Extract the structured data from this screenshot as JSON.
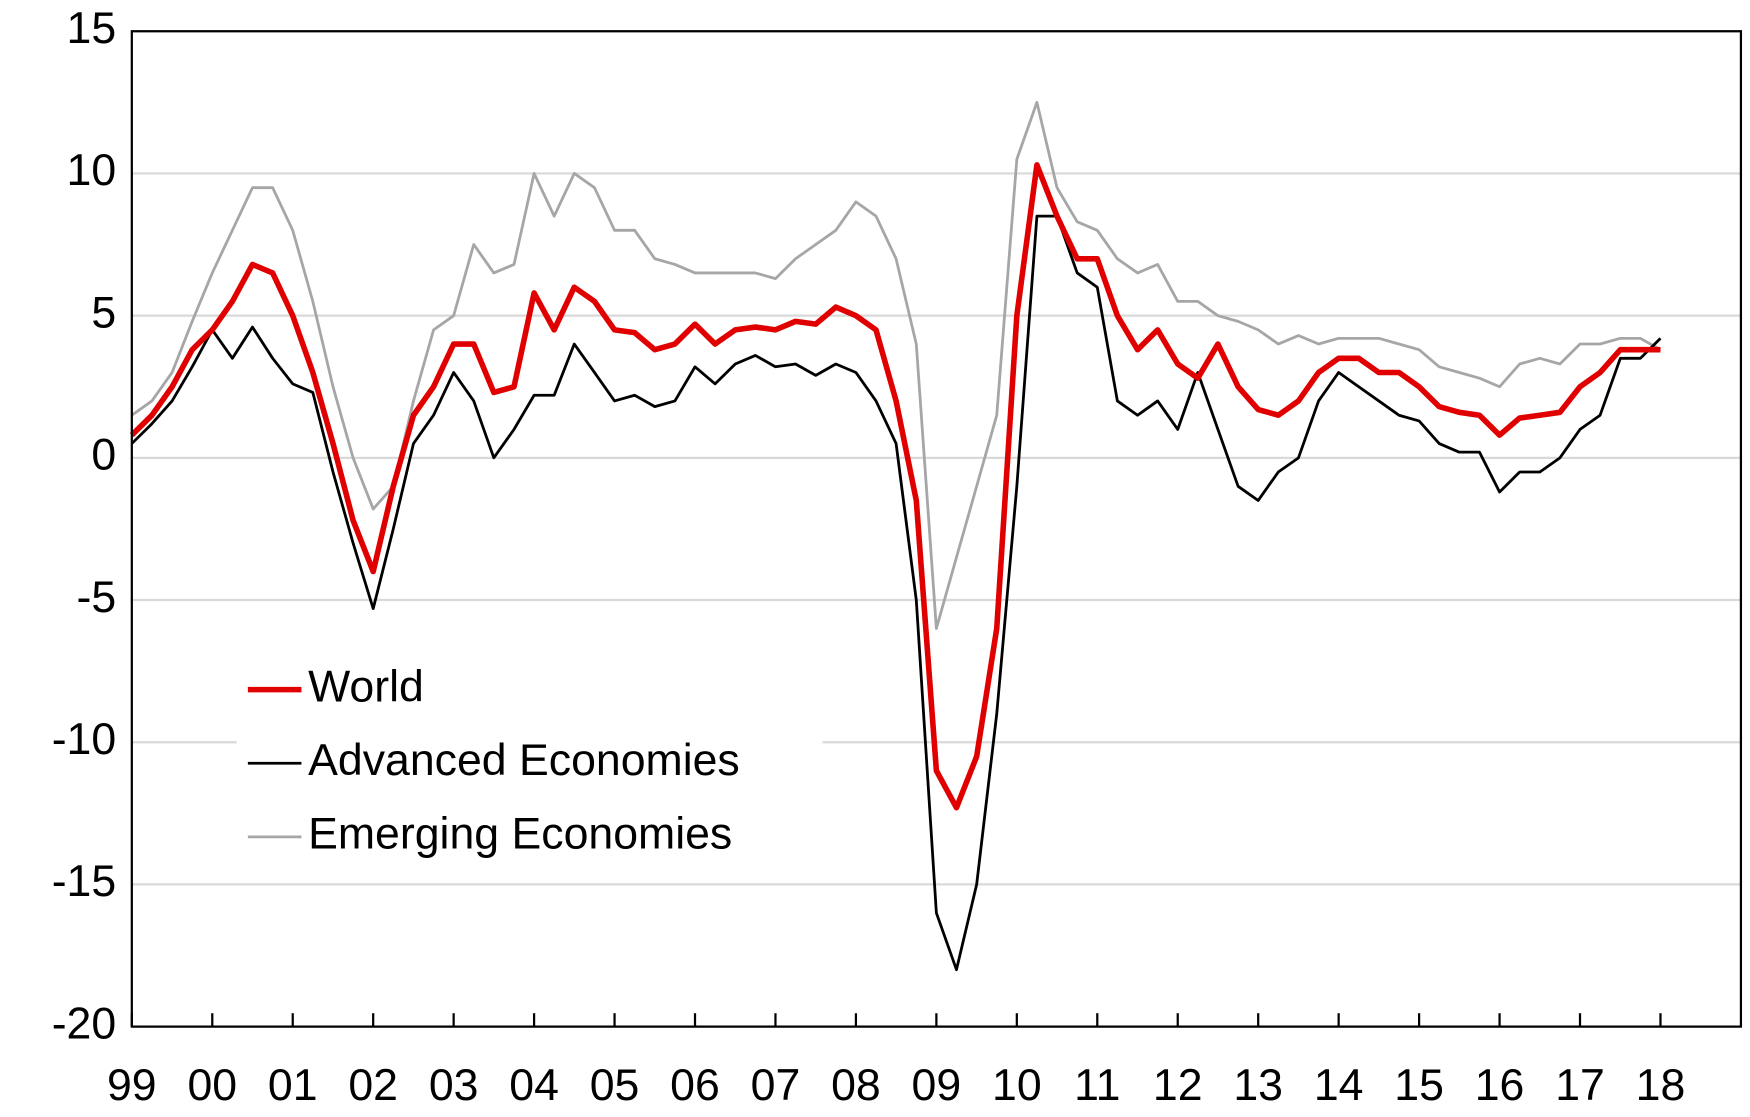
{
  "chart_data": {
    "type": "line",
    "x": [
      1999,
      1999.25,
      1999.5,
      1999.75,
      2000,
      2000.25,
      2000.5,
      2000.75,
      2001,
      2001.25,
      2001.5,
      2001.75,
      2002,
      2002.25,
      2002.5,
      2002.75,
      2003,
      2003.25,
      2003.5,
      2003.75,
      2004,
      2004.25,
      2004.5,
      2004.75,
      2005,
      2005.25,
      2005.5,
      2005.75,
      2006,
      2006.25,
      2006.5,
      2006.75,
      2007,
      2007.25,
      2007.5,
      2007.75,
      2008,
      2008.25,
      2008.5,
      2008.75,
      2009,
      2009.25,
      2009.5,
      2009.75,
      2010,
      2010.25,
      2010.5,
      2010.75,
      2011,
      2011.25,
      2011.5,
      2011.75,
      2012,
      2012.25,
      2012.5,
      2012.75,
      2013,
      2013.25,
      2013.5,
      2013.75,
      2014,
      2014.25,
      2014.5,
      2014.75,
      2015,
      2015.25,
      2015.5,
      2015.75,
      2016,
      2016.25,
      2016.5,
      2016.75,
      2017,
      2017.25,
      2017.5,
      2017.75,
      2018
    ],
    "series": [
      {
        "name": "World",
        "color": "#e00000",
        "width": 5,
        "values": [
          0.8,
          1.5,
          2.5,
          3.8,
          4.5,
          5.5,
          6.8,
          6.5,
          5.0,
          3.0,
          0.5,
          -2.2,
          -4.0,
          -1.0,
          1.5,
          2.5,
          4.0,
          4.0,
          2.3,
          2.5,
          5.8,
          4.5,
          6.0,
          5.5,
          4.5,
          4.4,
          3.8,
          4.0,
          4.7,
          4.0,
          4.5,
          4.6,
          4.5,
          4.8,
          4.7,
          5.3,
          5.0,
          4.5,
          2.0,
          -1.5,
          -11.0,
          -12.3,
          -10.5,
          -6.0,
          5.0,
          10.3,
          8.5,
          7.0,
          7.0,
          5.0,
          3.8,
          4.5,
          3.3,
          2.8,
          4.0,
          2.5,
          1.7,
          1.5,
          2.0,
          3.0,
          3.5,
          3.5,
          3.0,
          3.0,
          2.5,
          1.8,
          1.6,
          1.5,
          0.8,
          1.4,
          1.5,
          1.6,
          2.5,
          3.0,
          3.8,
          3.8,
          3.8
        ]
      },
      {
        "name": "Advanced Economies",
        "color": "#000000",
        "width": 2.5,
        "values": [
          0.5,
          1.2,
          2.0,
          3.2,
          4.5,
          3.5,
          4.6,
          3.5,
          2.6,
          2.3,
          -0.5,
          -3.0,
          -5.3,
          -2.5,
          0.5,
          1.5,
          3.0,
          2.0,
          0.0,
          1.0,
          2.2,
          2.2,
          4.0,
          3.0,
          2.0,
          2.2,
          1.8,
          2.0,
          3.2,
          2.6,
          3.3,
          3.6,
          3.2,
          3.3,
          2.9,
          3.3,
          3.0,
          2.0,
          0.5,
          -5.0,
          -16.0,
          -18.0,
          -15.0,
          -9.0,
          -1.0,
          8.5,
          8.5,
          6.5,
          6.0,
          2.0,
          1.5,
          2.0,
          1.0,
          3.0,
          1.0,
          -1.0,
          -1.5,
          -0.5,
          0.0,
          2.0,
          3.0,
          2.5,
          2.0,
          1.5,
          1.3,
          0.5,
          0.2,
          0.2,
          -1.2,
          -0.5,
          -0.5,
          0.0,
          1.0,
          1.5,
          3.5,
          3.5,
          4.2
        ]
      },
      {
        "name": "Emerging Economies",
        "color": "#a6a6a6",
        "width": 2.5,
        "values": [
          1.5,
          2.0,
          3.0,
          4.8,
          6.5,
          8.0,
          9.5,
          9.5,
          8.0,
          5.5,
          2.5,
          0.0,
          -1.8,
          -1.0,
          2.0,
          4.5,
          5.0,
          7.5,
          6.5,
          6.8,
          10.0,
          8.5,
          10.0,
          9.5,
          8.0,
          8.0,
          7.0,
          6.8,
          6.5,
          6.5,
          6.5,
          6.5,
          6.3,
          7.0,
          7.5,
          8.0,
          9.0,
          8.5,
          7.0,
          4.0,
          -6.0,
          -3.5,
          -1.0,
          1.5,
          10.5,
          12.5,
          9.5,
          8.3,
          8.0,
          7.0,
          6.5,
          6.8,
          5.5,
          5.5,
          5.0,
          4.8,
          4.5,
          4.0,
          4.3,
          4.0,
          4.2,
          4.2,
          4.2,
          4.0,
          3.8,
          3.2,
          3.0,
          2.8,
          2.5,
          3.3,
          3.5,
          3.3,
          4.0,
          4.0,
          4.2,
          4.2,
          3.8
        ]
      }
    ],
    "xlim": [
      1999,
      2019
    ],
    "xticks": [
      {
        "value": 1999,
        "label": "99"
      },
      {
        "value": 2000,
        "label": "00"
      },
      {
        "value": 2001,
        "label": "01"
      },
      {
        "value": 2002,
        "label": "02"
      },
      {
        "value": 2003,
        "label": "03"
      },
      {
        "value": 2004,
        "label": "04"
      },
      {
        "value": 2005,
        "label": "05"
      },
      {
        "value": 2006,
        "label": "06"
      },
      {
        "value": 2007,
        "label": "07"
      },
      {
        "value": 2008,
        "label": "08"
      },
      {
        "value": 2009,
        "label": "09"
      },
      {
        "value": 2010,
        "label": "10"
      },
      {
        "value": 2011,
        "label": "11"
      },
      {
        "value": 2012,
        "label": "12"
      },
      {
        "value": 2013,
        "label": "13"
      },
      {
        "value": 2014,
        "label": "14"
      },
      {
        "value": 2015,
        "label": "15"
      },
      {
        "value": 2016,
        "label": "16"
      },
      {
        "value": 2017,
        "label": "17"
      },
      {
        "value": 2018,
        "label": "18"
      }
    ],
    "ylim": [
      -20,
      15
    ],
    "yticks": [
      -20,
      -15,
      -10,
      -5,
      0,
      5,
      10,
      15
    ],
    "grid": true,
    "legend": "left"
  }
}
